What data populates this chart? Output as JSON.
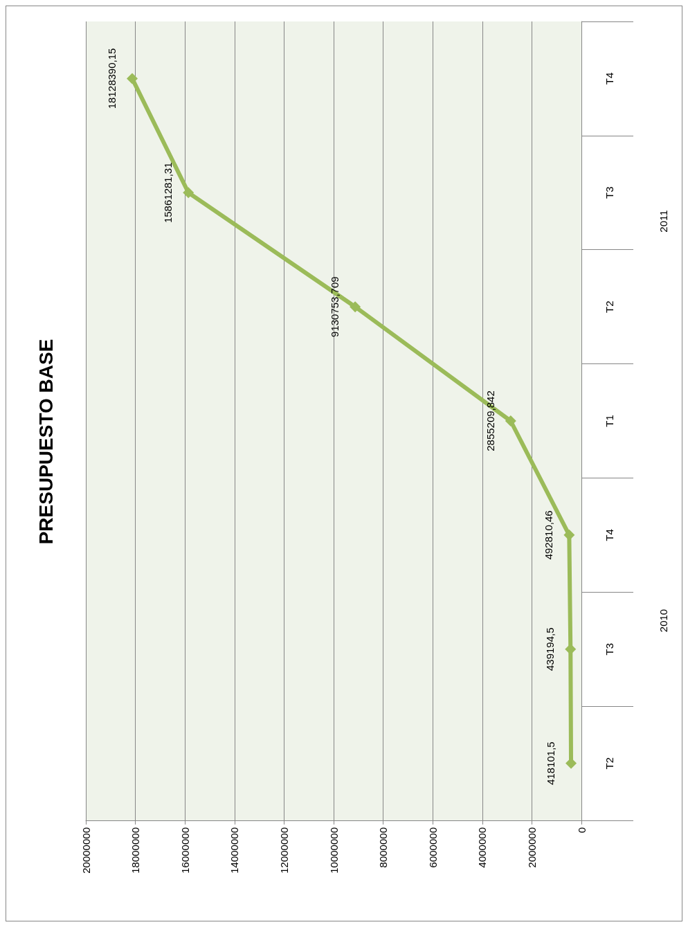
{
  "chart_data": {
    "type": "line",
    "title": "PRESUPUESTO BASE",
    "orientation": "horizontal",
    "categories": [
      "T4",
      "T3",
      "T2",
      "T1",
      "T4",
      "T3",
      "T2"
    ],
    "values": [
      18128390.15,
      15861281.31,
      9130753.709,
      2855209.842,
      492810.46,
      439194.5,
      418101.5
    ],
    "value_labels": [
      "18128390,15",
      "15861281,31",
      "9130753,709",
      "2855209,842",
      "492810,46",
      "439194,5",
      "418101,5"
    ],
    "color": "#9bbb59",
    "xlim": [
      20000000,
      0
    ],
    "xticks": [
      0,
      2000000,
      4000000,
      6000000,
      8000000,
      10000000,
      12000000,
      14000000,
      16000000,
      18000000,
      20000000
    ],
    "grid": "x",
    "marker": "diamond",
    "line_style": "solid",
    "annotations": [
      "2011",
      "2010"
    ]
  }
}
